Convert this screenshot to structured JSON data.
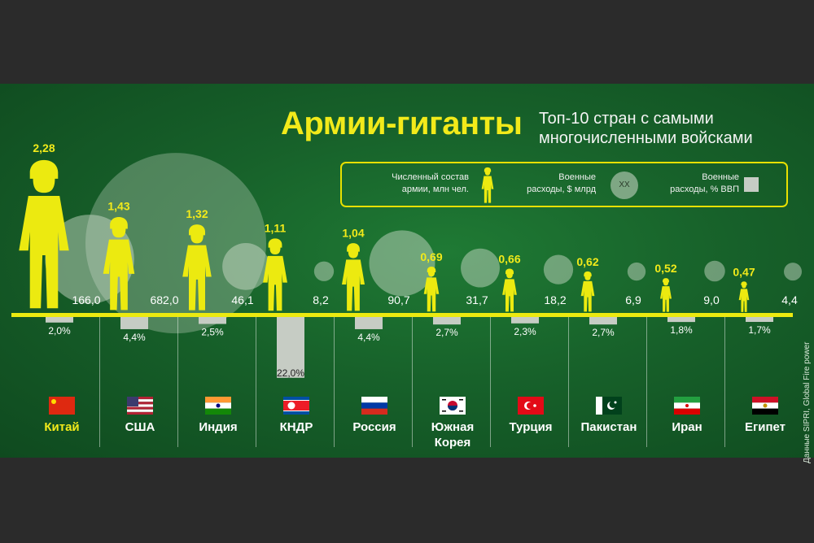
{
  "title": "Армии-гиганты",
  "subtitle": "Топ-10 стран с самыми многочисленными войсками",
  "legend": {
    "troops_label_1": "Численный состав",
    "troops_label_2": "армии, млн чел.",
    "spend_label_1": "Военные",
    "spend_label_2": "расходы, $ млрд",
    "spend_marker": "XX",
    "gdp_label_1": "Военные",
    "gdp_label_2": "расходы, % ВВП"
  },
  "source": "Данные SIPRI, Global Fire power",
  "colors": {
    "accent": "#f2ea1a",
    "soldier": "#ecea10",
    "circle": "#d7e2d3",
    "gdp_bar": "#c6ccc4"
  },
  "chart_data": {
    "type": "bar",
    "title": "Армии-гиганты",
    "categories": [
      "Китай",
      "США",
      "Индия",
      "КНДР",
      "Россия",
      "Южная Корея",
      "Турция",
      "Пакистан",
      "Иран",
      "Египет"
    ],
    "series": [
      {
        "name": "Численный состав армии, млн чел.",
        "values": [
          2.28,
          1.43,
          1.32,
          1.11,
          1.04,
          0.69,
          0.66,
          0.62,
          0.52,
          0.47
        ],
        "labels": [
          "2,28",
          "1,43",
          "1,32",
          "1,11",
          "1,04",
          "0,69",
          "0,66",
          "0,62",
          "0,52",
          "0,47"
        ]
      },
      {
        "name": "Военные расходы, $ млрд",
        "values": [
          166.0,
          682.0,
          46.1,
          8.2,
          90.7,
          31.7,
          18.2,
          6.9,
          9.0,
          4.4
        ],
        "labels": [
          "166,0",
          "682,0",
          "46,1",
          "8,2",
          "90,7",
          "31,7",
          "18,2",
          "6,9",
          "9,0",
          "4,4"
        ]
      },
      {
        "name": "Военные расходы, % ВВП",
        "values": [
          2.0,
          4.4,
          2.5,
          22.0,
          4.4,
          2.7,
          2.3,
          2.7,
          1.8,
          1.7
        ],
        "labels": [
          "2,0%",
          "4,4%",
          "2,5%",
          "22,0%",
          "4,4%",
          "2,7%",
          "2,3%",
          "2,7%",
          "1,8%",
          "1,7%"
        ]
      }
    ],
    "country_lines": [
      [
        "Китай"
      ],
      [
        "США"
      ],
      [
        "Индия"
      ],
      [
        "КНДР"
      ],
      [
        "Россия"
      ],
      [
        "Южная",
        "Корея"
      ],
      [
        "Турция"
      ],
      [
        "Пакистан"
      ],
      [
        "Иран"
      ],
      [
        "Египет"
      ]
    ],
    "flags": [
      "china-flag-icon",
      "usa-flag-icon",
      "india-flag-icon",
      "north-korea-flag-icon",
      "russia-flag-icon",
      "south-korea-flag-icon",
      "turkey-flag-icon",
      "pakistan-flag-icon",
      "iran-flag-icon",
      "egypt-flag-icon"
    ],
    "legend": "top-right"
  }
}
